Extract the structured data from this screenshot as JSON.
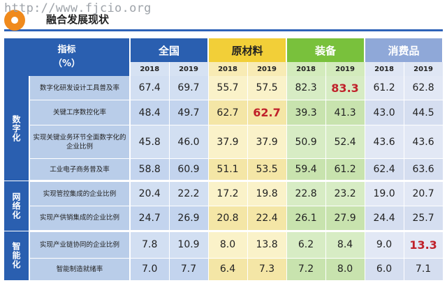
{
  "watermark": "http://www.fjcio.org",
  "page_title": "融合发展现状",
  "header": {
    "indicator_line1": "指标",
    "indicator_line2": "（%）",
    "groups": [
      "全国",
      "原材料",
      "装备",
      "消费品"
    ],
    "years": [
      "2018",
      "2019",
      "2018",
      "2019",
      "2018",
      "2019",
      "2018",
      "2019"
    ]
  },
  "categories": {
    "digital": "数字化",
    "network": "网络化",
    "smart": "智能化"
  },
  "rows": [
    {
      "label": "数字化研发设计工具普及率",
      "values": [
        "67.4",
        "69.7",
        "55.7",
        "57.5",
        "82.3",
        "83.3",
        "61.2",
        "62.8"
      ]
    },
    {
      "label": "关键工序数控化率",
      "values": [
        "48.4",
        "49.7",
        "62.7",
        "62.7",
        "39.3",
        "41.3",
        "43.0",
        "44.5"
      ]
    },
    {
      "label": "实现关键业务环节全面数字化的企业比例",
      "values": [
        "45.8",
        "46.0",
        "37.9",
        "37.9",
        "50.9",
        "52.4",
        "43.6",
        "43.6"
      ]
    },
    {
      "label": "工业电子商务普及率",
      "values": [
        "58.8",
        "60.9",
        "51.1",
        "53.5",
        "59.4",
        "61.2",
        "62.4",
        "63.6"
      ]
    },
    {
      "label": "实现管控集成的企业比例",
      "values": [
        "20.4",
        "22.2",
        "17.2",
        "19.8",
        "22.8",
        "23.2",
        "19.0",
        "20.7"
      ]
    },
    {
      "label": "实现产供销集成的企业比例",
      "values": [
        "24.7",
        "26.9",
        "20.8",
        "22.4",
        "26.1",
        "27.9",
        "24.4",
        "25.7"
      ]
    },
    {
      "label": "实现产业链协同的企业比例",
      "values": [
        "7.8",
        "10.9",
        "8.0",
        "13.8",
        "6.2",
        "8.4",
        "9.0",
        "13.3"
      ]
    },
    {
      "label": "智能制造就绪率",
      "values": [
        "7.0",
        "7.7",
        "6.4",
        "7.3",
        "7.2",
        "8.0",
        "6.0",
        "7.1"
      ]
    }
  ],
  "colors": {
    "header_blue": "#2a5fb0",
    "raw_yellow": "#f2cf38",
    "equip_green": "#79c13c",
    "consumer_lavender": "#8fa8d8",
    "highlight_red": "#c0212a"
  }
}
